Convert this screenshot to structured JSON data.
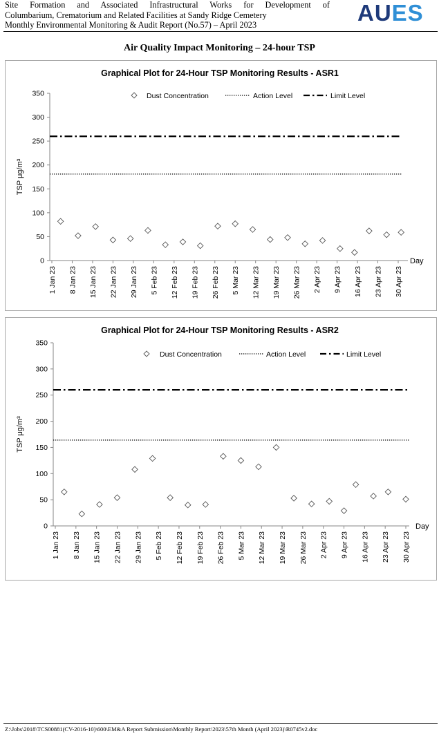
{
  "header": {
    "line1": "Site Formation and Associated Infrastructural Works for Development of",
    "line2": "Columbarium, Crematorium and Related Facilities at Sandy Ridge Cemetery",
    "line3": "Monthly Environmental Monitoring & Audit Report (No.57) – April 2023",
    "logo_part1": "AU",
    "logo_part2": "ES",
    "logo_color_primary": "#1e3a7a",
    "logo_color_secondary": "#2f8fd6"
  },
  "section_title": "Air Quality Impact Monitoring – 24-hour TSP",
  "footer": {
    "path": "Z:\\Jobs\\2018\\TCS00881(CV-2016-10)\\600\\EM&A Report Submission\\Monthly Report\\2023\\57th Month (April 2023)\\R0745v2.doc"
  },
  "chart_data": [
    {
      "type": "scatter",
      "title": "Graphical Plot for 24-Hour TSP Monitoring Results - ASR1",
      "xlabel": "Day",
      "ylabel": "TSP μg/m³",
      "ylim": [
        0,
        350
      ],
      "yticks": [
        0,
        50,
        100,
        150,
        200,
        250,
        300,
        350
      ],
      "x_tick_labels": [
        "1 Jan 23",
        "8 Jan 23",
        "15 Jan 23",
        "22 Jan 23",
        "29 Jan 23",
        "5 Feb 23",
        "12 Feb 23",
        "19 Feb 23",
        "26 Feb 23",
        "5 Mar 23",
        "12 Mar 23",
        "19 Mar 23",
        "26 Mar 23",
        "2 Apr 23",
        "9 Apr 23",
        "16 Apr 23",
        "23 Apr 23",
        "30 Apr 23"
      ],
      "x_range": [
        "1 Jan 23",
        "30 Apr 23"
      ],
      "legend": [
        "Dust Concentration",
        "Action Level",
        "Limit Level"
      ],
      "legend_position": "top",
      "grid": false,
      "series": [
        {
          "name": "Dust Concentration",
          "marker": "diamond-open",
          "points": [
            [
              "4 Jan 23",
              82
            ],
            [
              "10 Jan 23",
              52
            ],
            [
              "16 Jan 23",
              71
            ],
            [
              "22 Jan 23",
              43
            ],
            [
              "28 Jan 23",
              46
            ],
            [
              "3 Feb 23",
              63
            ],
            [
              "9 Feb 23",
              33
            ],
            [
              "15 Feb 23",
              39
            ],
            [
              "21 Feb 23",
              31
            ],
            [
              "27 Feb 23",
              72
            ],
            [
              "5 Mar 23",
              77
            ],
            [
              "11 Mar 23",
              65
            ],
            [
              "17 Mar 23",
              44
            ],
            [
              "23 Mar 23",
              48
            ],
            [
              "29 Mar 23",
              35
            ],
            [
              "4 Apr 23",
              42
            ],
            [
              "10 Apr 23",
              25
            ],
            [
              "15 Apr 23",
              17
            ],
            [
              "20 Apr 23",
              62
            ],
            [
              "26 Apr 23",
              54
            ],
            [
              "1 May 23",
              59
            ]
          ]
        },
        {
          "name": "Action Level",
          "style": "dotted",
          "value": 181
        },
        {
          "name": "Limit Level",
          "style": "dash-dot",
          "value": 260
        }
      ]
    },
    {
      "type": "scatter",
      "title": "Graphical Plot for 24-Hour TSP Monitoring Results - ASR2",
      "xlabel": "Day",
      "ylabel": "TSP μg/m³",
      "ylim": [
        0,
        350
      ],
      "yticks": [
        0,
        50,
        100,
        150,
        200,
        250,
        300,
        350
      ],
      "x_tick_labels": [
        "1 Jan 23",
        "8 Jan 23",
        "15 Jan 23",
        "22 Jan 23",
        "29 Jan 23",
        "5 Feb 23",
        "12 Feb 23",
        "19 Feb 23",
        "26 Feb 23",
        "5 Mar 23",
        "12 Mar 23",
        "19 Mar 23",
        "26 Mar 23",
        "2 Apr 23",
        "9 Apr 23",
        "16 Apr 23",
        "23 Apr 23",
        "30 Apr 23"
      ],
      "x_range": [
        "1 Jan 23",
        "30 Apr 23"
      ],
      "legend": [
        "Dust Concentration",
        "Action Level",
        "Limit Level"
      ],
      "legend_position": "top",
      "grid": false,
      "series": [
        {
          "name": "Dust Concentration",
          "marker": "diamond-open",
          "points": [
            [
              "4 Jan 23",
              65
            ],
            [
              "10 Jan 23",
              23
            ],
            [
              "16 Jan 23",
              41
            ],
            [
              "22 Jan 23",
              54
            ],
            [
              "28 Jan 23",
              108
            ],
            [
              "3 Feb 23",
              129
            ],
            [
              "9 Feb 23",
              54
            ],
            [
              "15 Feb 23",
              40
            ],
            [
              "21 Feb 23",
              41
            ],
            [
              "27 Feb 23",
              133
            ],
            [
              "5 Mar 23",
              125
            ],
            [
              "11 Mar 23",
              113
            ],
            [
              "17 Mar 23",
              150
            ],
            [
              "23 Mar 23",
              53
            ],
            [
              "29 Mar 23",
              42
            ],
            [
              "4 Apr 23",
              47
            ],
            [
              "9 Apr 23",
              29
            ],
            [
              "13 Apr 23",
              79
            ],
            [
              "19 Apr 23",
              57
            ],
            [
              "24 Apr 23",
              65
            ],
            [
              "30 Apr 23",
              51
            ]
          ]
        },
        {
          "name": "Action Level",
          "style": "dotted",
          "value": 164
        },
        {
          "name": "Limit Level",
          "style": "dash-dot",
          "value": 260
        }
      ]
    }
  ]
}
